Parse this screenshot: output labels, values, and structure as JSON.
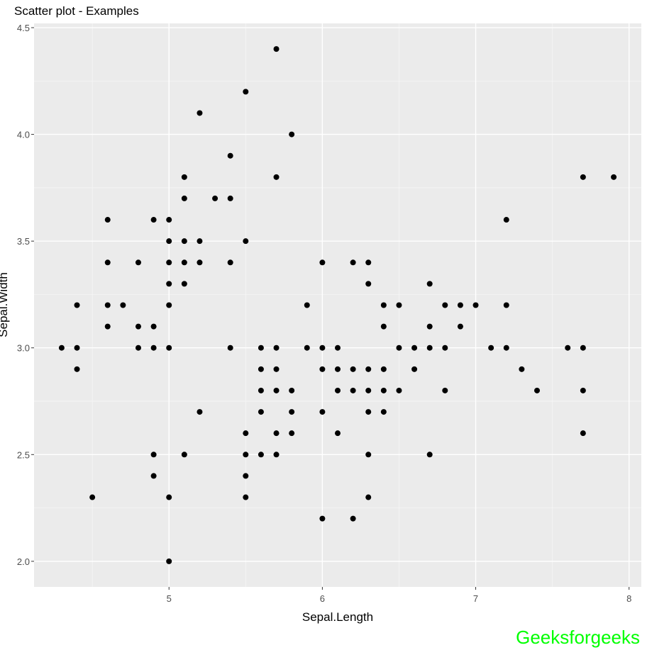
{
  "chart_data": {
    "type": "scatter",
    "title": "Scatter plot - Examples",
    "xlabel": "Sepal.Length",
    "ylabel": "Sepal.Width",
    "xlim": [
      4.12,
      8.08
    ],
    "ylim": [
      1.88,
      4.52
    ],
    "x_ticks": [
      5,
      6,
      7,
      8
    ],
    "x_tick_labels": [
      "5",
      "6",
      "7",
      "8"
    ],
    "y_ticks": [
      2.0,
      2.5,
      3.0,
      3.5,
      4.0,
      4.5
    ],
    "y_tick_labels": [
      "2.0",
      "2.5",
      "3.0",
      "3.5",
      "4.0",
      "4.5"
    ],
    "grid": true,
    "background": "#ebebeb",
    "point_color": "#000000",
    "points": [
      [
        4.3,
        3.0
      ],
      [
        4.4,
        3.2
      ],
      [
        4.4,
        3.0
      ],
      [
        4.4,
        2.9
      ],
      [
        4.5,
        2.3
      ],
      [
        4.6,
        3.6
      ],
      [
        4.6,
        3.4
      ],
      [
        4.6,
        3.2
      ],
      [
        4.6,
        3.1
      ],
      [
        4.7,
        3.2
      ],
      [
        4.8,
        3.4
      ],
      [
        4.8,
        3.1
      ],
      [
        4.8,
        3.0
      ],
      [
        4.9,
        3.6
      ],
      [
        4.9,
        3.1
      ],
      [
        4.9,
        3.0
      ],
      [
        4.9,
        2.5
      ],
      [
        4.9,
        2.4
      ],
      [
        5.0,
        3.6
      ],
      [
        5.0,
        3.5
      ],
      [
        5.0,
        3.4
      ],
      [
        5.0,
        3.3
      ],
      [
        5.0,
        3.2
      ],
      [
        5.0,
        3.0
      ],
      [
        5.0,
        2.3
      ],
      [
        5.0,
        2.0
      ],
      [
        5.1,
        3.8
      ],
      [
        5.1,
        3.7
      ],
      [
        5.1,
        3.5
      ],
      [
        5.1,
        3.4
      ],
      [
        5.1,
        3.3
      ],
      [
        5.1,
        2.5
      ],
      [
        5.2,
        4.1
      ],
      [
        5.2,
        3.5
      ],
      [
        5.2,
        3.4
      ],
      [
        5.2,
        2.7
      ],
      [
        5.3,
        3.7
      ],
      [
        5.4,
        3.9
      ],
      [
        5.4,
        3.7
      ],
      [
        5.4,
        3.4
      ],
      [
        5.4,
        3.0
      ],
      [
        5.5,
        4.2
      ],
      [
        5.5,
        3.5
      ],
      [
        5.5,
        2.6
      ],
      [
        5.5,
        2.5
      ],
      [
        5.5,
        2.4
      ],
      [
        5.5,
        2.3
      ],
      [
        5.6,
        3.0
      ],
      [
        5.6,
        2.9
      ],
      [
        5.6,
        2.8
      ],
      [
        5.6,
        2.7
      ],
      [
        5.6,
        2.5
      ],
      [
        5.7,
        4.4
      ],
      [
        5.7,
        3.8
      ],
      [
        5.7,
        3.0
      ],
      [
        5.7,
        2.9
      ],
      [
        5.7,
        2.8
      ],
      [
        5.7,
        2.6
      ],
      [
        5.7,
        2.5
      ],
      [
        5.8,
        4.0
      ],
      [
        5.8,
        2.8
      ],
      [
        5.8,
        2.7
      ],
      [
        5.8,
        2.6
      ],
      [
        5.9,
        3.2
      ],
      [
        5.9,
        3.0
      ],
      [
        6.0,
        3.4
      ],
      [
        6.0,
        3.0
      ],
      [
        6.0,
        2.9
      ],
      [
        6.0,
        2.7
      ],
      [
        6.0,
        2.2
      ],
      [
        6.1,
        3.0
      ],
      [
        6.1,
        2.9
      ],
      [
        6.1,
        2.8
      ],
      [
        6.1,
        2.6
      ],
      [
        6.2,
        3.4
      ],
      [
        6.2,
        2.9
      ],
      [
        6.2,
        2.8
      ],
      [
        6.2,
        2.2
      ],
      [
        6.3,
        3.4
      ],
      [
        6.3,
        3.3
      ],
      [
        6.3,
        2.9
      ],
      [
        6.3,
        2.8
      ],
      [
        6.3,
        2.7
      ],
      [
        6.3,
        2.5
      ],
      [
        6.3,
        2.3
      ],
      [
        6.4,
        3.2
      ],
      [
        6.4,
        3.1
      ],
      [
        6.4,
        2.9
      ],
      [
        6.4,
        2.8
      ],
      [
        6.4,
        2.7
      ],
      [
        6.5,
        3.2
      ],
      [
        6.5,
        3.0
      ],
      [
        6.5,
        2.8
      ],
      [
        6.6,
        3.0
      ],
      [
        6.6,
        2.9
      ],
      [
        6.7,
        3.3
      ],
      [
        6.7,
        3.1
      ],
      [
        6.7,
        3.0
      ],
      [
        6.7,
        2.5
      ],
      [
        6.8,
        3.2
      ],
      [
        6.8,
        3.0
      ],
      [
        6.8,
        2.8
      ],
      [
        6.9,
        3.2
      ],
      [
        6.9,
        3.1
      ],
      [
        7.0,
        3.2
      ],
      [
        7.1,
        3.0
      ],
      [
        7.2,
        3.6
      ],
      [
        7.2,
        3.2
      ],
      [
        7.2,
        3.0
      ],
      [
        7.3,
        2.9
      ],
      [
        7.4,
        2.8
      ],
      [
        7.6,
        3.0
      ],
      [
        7.7,
        3.8
      ],
      [
        7.7,
        3.0
      ],
      [
        7.7,
        2.8
      ],
      [
        7.7,
        2.6
      ],
      [
        7.9,
        3.8
      ]
    ]
  },
  "watermark": {
    "text": "Geeksforgeeks",
    "color": "#00ff00"
  }
}
